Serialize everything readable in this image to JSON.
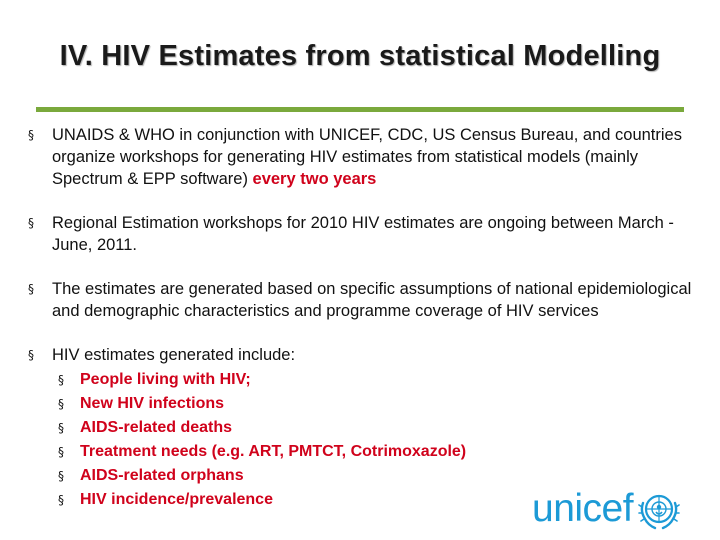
{
  "slide": {
    "title": "IV. HIV Estimates from statistical Modelling",
    "bullets": [
      {
        "text": "UNAIDS & WHO in conjunction with UNICEF, CDC, US Census Bureau, and countries organize workshops for generating HIV estimates from statistical models (mainly Spectrum & EPP software) ",
        "highlight": "every two years"
      },
      {
        "text": "Regional Estimation workshops for 2010 HIV estimates are ongoing between March - June, 2011."
      },
      {
        "text": "The estimates are generated based on specific assumptions of national epidemiological and demographic characteristics and programme coverage of HIV services"
      },
      {
        "text": "HIV estimates generated include:",
        "subitems": [
          "People living with HIV;",
          "New HIV infections",
          "AIDS-related deaths",
          "Treatment needs (e.g. ART, PMTCT, Cotrimoxazole)",
          "AIDS-related orphans",
          "HIV incidence/prevalence"
        ]
      }
    ],
    "bullet_glyph": "§",
    "logo": {
      "text": "unicef",
      "color": "#1c9ad6",
      "icon": "unicef-emblem-icon"
    },
    "colors": {
      "accent_rule": "#7aa93c",
      "highlight": "#d0021b"
    }
  }
}
